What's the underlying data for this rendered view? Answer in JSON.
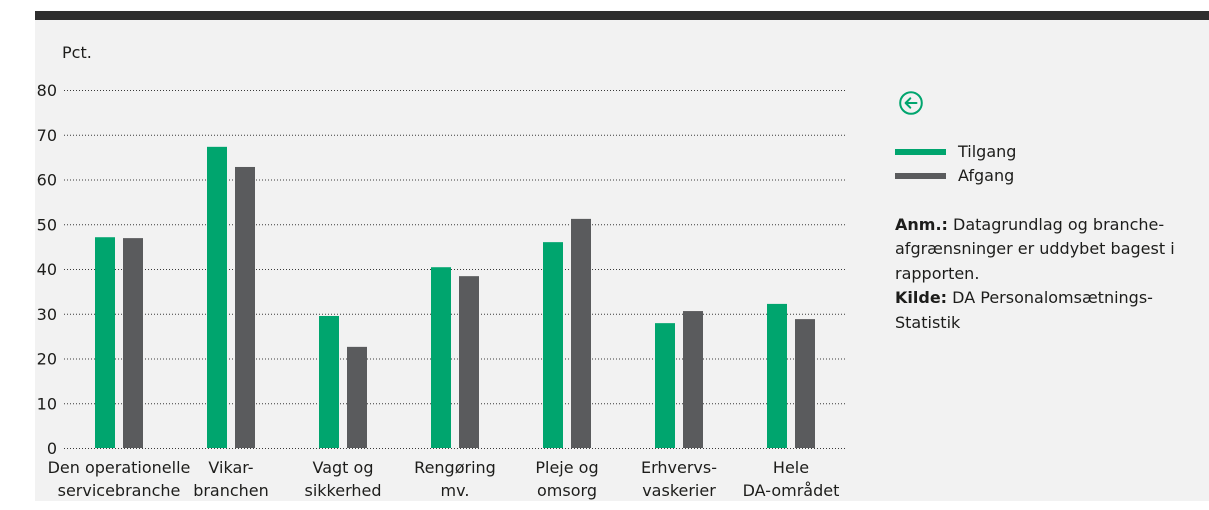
{
  "colors": {
    "top_bar": "#2e2e2e",
    "panel": "#f2f2f2",
    "text": "#1d1d1b",
    "gridline": "#3a3a3a",
    "icon": "#00a56e"
  },
  "icon": "arrow-left-circle-icon",
  "chart_data": {
    "type": "bar",
    "ylabel": "Pct.",
    "xlabel": "",
    "ylim": [
      0,
      80
    ],
    "yticks": [
      0,
      10,
      20,
      30,
      40,
      50,
      60,
      70,
      80
    ],
    "grid": true,
    "legend_position": "right",
    "categories": [
      [
        "Den operationelle",
        "servicebranche"
      ],
      [
        "Vikar-",
        "branchen"
      ],
      [
        "Vagt og",
        "sikkerhed"
      ],
      [
        "Rengøring",
        "mv."
      ],
      [
        "Pleje og",
        "omsorg"
      ],
      [
        "Erhvervs-",
        "vaskerier"
      ],
      [
        "Hele",
        "DA-området"
      ]
    ],
    "series": [
      {
        "name": "Tilgang",
        "color": "#00a56e",
        "values": [
          47.1,
          67.3,
          29.5,
          40.4,
          46.0,
          27.9,
          32.2
        ]
      },
      {
        "name": "Afgang",
        "color": "#5a5b5d",
        "values": [
          46.9,
          62.8,
          22.6,
          38.4,
          51.2,
          30.6,
          28.8
        ]
      }
    ]
  },
  "notes": [
    {
      "label": "Anm.:",
      "lines": [
        "Datagrundlag og branche-",
        "afgrænsninger er uddybet bagest i",
        "rapporten."
      ]
    },
    {
      "label": "Kilde:",
      "lines": [
        "DA Personalomsætnings-",
        "Statistik"
      ]
    }
  ]
}
